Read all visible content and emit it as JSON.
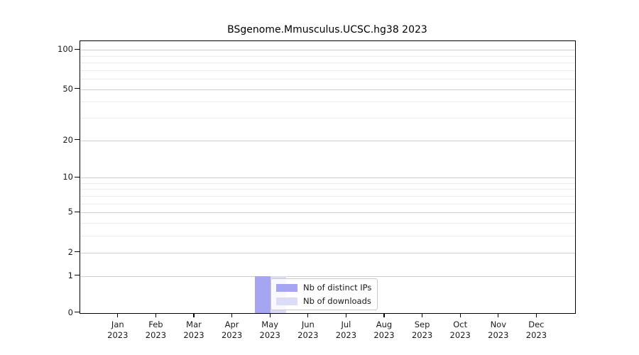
{
  "title": "BSgenome.Mmusculus.UCSC.hg38 2023",
  "chart_data": {
    "type": "bar",
    "title": "BSgenome.Mmusculus.UCSC.hg38 2023",
    "categories": [
      "Jan",
      "Feb",
      "Mar",
      "Apr",
      "May",
      "Jun",
      "Jul",
      "Aug",
      "Sep",
      "Oct",
      "Nov",
      "Dec"
    ],
    "year_label": "2023",
    "series": [
      {
        "name": "Nb of distinct IPs",
        "color": "#a5a5f2",
        "values": [
          0,
          0,
          0,
          0,
          1,
          0,
          0,
          0,
          0,
          0,
          0,
          0
        ]
      },
      {
        "name": "Nb of downloads",
        "color": "#dcdcf8",
        "values": [
          0,
          0,
          0,
          0,
          1,
          0,
          0,
          0,
          0,
          0,
          0,
          0
        ]
      }
    ],
    "xlabel": "",
    "ylabel": "",
    "yticks": [
      0,
      1,
      2,
      5,
      10,
      20,
      50,
      100
    ],
    "yticks_minor": [
      3,
      4,
      6,
      7,
      8,
      9,
      30,
      40,
      60,
      70,
      80,
      90
    ],
    "yscale": "log1p",
    "ylim": [
      0,
      117
    ],
    "grid": "horizontal",
    "legend_position": "inside-bottom-center"
  }
}
